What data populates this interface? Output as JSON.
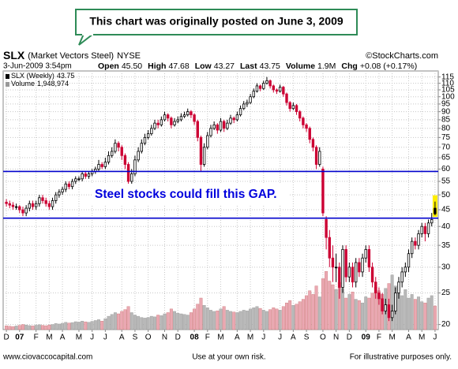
{
  "callout": "This chart was originally posted on June 3, 2009",
  "header": {
    "symbol": "SLX",
    "name": "(Market Vectors Steel)",
    "exchange": "NYSE",
    "source": "©StockCharts.com",
    "datetime": "3-Jun-2009 3:54pm",
    "quote": [
      {
        "label": "Open",
        "value": "45.50"
      },
      {
        "label": "High",
        "value": "47.68"
      },
      {
        "label": "Low",
        "value": "43.27"
      },
      {
        "label": "Last",
        "value": "43.75"
      },
      {
        "label": "Volume",
        "value": "1.9M"
      },
      {
        "label": "Chg",
        "value": "+0.08 (+0.17%)"
      }
    ]
  },
  "chart_data": {
    "type": "candlestick",
    "legend": [
      {
        "label": "SLX (Weekly)",
        "value": "43.75"
      },
      {
        "label": "Volume",
        "value": "1,948,974"
      }
    ],
    "annotation": "Steel stocks could fill this GAP.",
    "log_scale": true,
    "grid": true,
    "ylim": [
      19.3,
      120
    ],
    "yticks": [
      20,
      25,
      30,
      35,
      40,
      45,
      50,
      55,
      60,
      65,
      70,
      75,
      80,
      85,
      90,
      95,
      100,
      105,
      110,
      115
    ],
    "vlim": [
      0,
      6500000
    ],
    "xticks": [
      {
        "value": 0,
        "label": "D"
      },
      {
        "value": 4,
        "label": "07"
      },
      {
        "value": 9,
        "label": "F"
      },
      {
        "value": 13,
        "label": "M"
      },
      {
        "value": 17,
        "label": "A"
      },
      {
        "value": 22,
        "label": "M"
      },
      {
        "value": 26,
        "label": "J"
      },
      {
        "value": 30,
        "label": "J"
      },
      {
        "value": 35,
        "label": "A"
      },
      {
        "value": 39,
        "label": "S"
      },
      {
        "value": 43,
        "label": "O"
      },
      {
        "value": 48,
        "label": "N"
      },
      {
        "value": 52,
        "label": "D"
      },
      {
        "value": 57,
        "label": "08"
      },
      {
        "value": 61,
        "label": "F"
      },
      {
        "value": 65,
        "label": "M"
      },
      {
        "value": 70,
        "label": "A"
      },
      {
        "value": 74,
        "label": "M"
      },
      {
        "value": 78,
        "label": "J"
      },
      {
        "value": 83,
        "label": "J"
      },
      {
        "value": 87,
        "label": "A"
      },
      {
        "value": 91,
        "label": "S"
      },
      {
        "value": 96,
        "label": "O"
      },
      {
        "value": 100,
        "label": "N"
      },
      {
        "value": 104,
        "label": "D"
      },
      {
        "value": 109,
        "label": "09"
      },
      {
        "value": 113,
        "label": "F"
      },
      {
        "value": 117,
        "label": "M"
      },
      {
        "value": 122,
        "label": "A"
      },
      {
        "value": 126,
        "label": "M"
      },
      {
        "value": 130,
        "label": "J"
      }
    ],
    "up_color": "#000000",
    "down_color": "#cc0033",
    "volume_up_color": "#b8b8b8",
    "volume_down_color": "#eaa8b2",
    "highlight_color": "#ffee00",
    "reference_lines": [
      {
        "value": 59,
        "color": "#0000cc"
      },
      {
        "value": 42.4,
        "color": "#0000cc"
      }
    ],
    "ohlc": [
      [
        47.5,
        48.5,
        46,
        47
      ],
      [
        47,
        48,
        45.5,
        46.5
      ],
      [
        46.5,
        47.5,
        45,
        46
      ],
      [
        46,
        47,
        45,
        46
      ],
      [
        46,
        46.5,
        44,
        45
      ],
      [
        45,
        46,
        43,
        44
      ],
      [
        44,
        46.5,
        43,
        45.5
      ],
      [
        45.5,
        48,
        44.5,
        47
      ],
      [
        47,
        48,
        45,
        46
      ],
      [
        46,
        48,
        45,
        47
      ],
      [
        47,
        50,
        46,
        49
      ],
      [
        49,
        50,
        47,
        48
      ],
      [
        48,
        49,
        46,
        47
      ],
      [
        47,
        48,
        45,
        46
      ],
      [
        46,
        49,
        45,
        48
      ],
      [
        48,
        51,
        47,
        50
      ],
      [
        50,
        52,
        49,
        51
      ],
      [
        51,
        53,
        50,
        52
      ],
      [
        52,
        55,
        51,
        54
      ],
      [
        54,
        55,
        52,
        53
      ],
      [
        53,
        56,
        52,
        55
      ],
      [
        55,
        57,
        54,
        56
      ],
      [
        56,
        57,
        55,
        56
      ],
      [
        56,
        59,
        55,
        58
      ],
      [
        58,
        59,
        56,
        57
      ],
      [
        57,
        59,
        56,
        58
      ],
      [
        58,
        60,
        57,
        59
      ],
      [
        59,
        61,
        58,
        60
      ],
      [
        60,
        64,
        59,
        62
      ],
      [
        62,
        63,
        60,
        61
      ],
      [
        61,
        65,
        60,
        63
      ],
      [
        63,
        68,
        62,
        66
      ],
      [
        66,
        70,
        65,
        68
      ],
      [
        68,
        74,
        67,
        72
      ],
      [
        72,
        73,
        68,
        70
      ],
      [
        70,
        71,
        64,
        66
      ],
      [
        66,
        67,
        60,
        62
      ],
      [
        62,
        63,
        53,
        55
      ],
      [
        55,
        60,
        54,
        58
      ],
      [
        58,
        66,
        57,
        64
      ],
      [
        64,
        70,
        63,
        68
      ],
      [
        68,
        74,
        67,
        72
      ],
      [
        72,
        77,
        71,
        75
      ],
      [
        75,
        79,
        74,
        77
      ],
      [
        77,
        82,
        76,
        80
      ],
      [
        80,
        85,
        79,
        83
      ],
      [
        83,
        85,
        80,
        82
      ],
      [
        82,
        87,
        81,
        85
      ],
      [
        85,
        90,
        84,
        88
      ],
      [
        88,
        89,
        84,
        86
      ],
      [
        86,
        87,
        80,
        82
      ],
      [
        82,
        86,
        81,
        84
      ],
      [
        84,
        87,
        83,
        85
      ],
      [
        85,
        89,
        84,
        87
      ],
      [
        87,
        90,
        86,
        88
      ],
      [
        88,
        92,
        87,
        90
      ],
      [
        90,
        91,
        86,
        88
      ],
      [
        88,
        89,
        82,
        84
      ],
      [
        84,
        85,
        73,
        75
      ],
      [
        75,
        76,
        59,
        62
      ],
      [
        62,
        72,
        61,
        70
      ],
      [
        70,
        78,
        69,
        76
      ],
      [
        76,
        82,
        75,
        80
      ],
      [
        80,
        84,
        79,
        82
      ],
      [
        82,
        83,
        77,
        79
      ],
      [
        79,
        86,
        78,
        84
      ],
      [
        84,
        85,
        78,
        80
      ],
      [
        80,
        85,
        79,
        83
      ],
      [
        83,
        88,
        82,
        86
      ],
      [
        86,
        87,
        83,
        85
      ],
      [
        85,
        90,
        84,
        88
      ],
      [
        88,
        94,
        87,
        92
      ],
      [
        92,
        97,
        91,
        95
      ],
      [
        95,
        98,
        93,
        96
      ],
      [
        96,
        102,
        95,
        100
      ],
      [
        100,
        106,
        99,
        104
      ],
      [
        104,
        110,
        103,
        108
      ],
      [
        108,
        109,
        104,
        106
      ],
      [
        106,
        112,
        105,
        110
      ],
      [
        110,
        115,
        109,
        112
      ],
      [
        112,
        113,
        106,
        108
      ],
      [
        108,
        109,
        103,
        105
      ],
      [
        105,
        106,
        102,
        104
      ],
      [
        104,
        109,
        103,
        107
      ],
      [
        107,
        108,
        100,
        102
      ],
      [
        102,
        103,
        94,
        96
      ],
      [
        96,
        97,
        90,
        92
      ],
      [
        92,
        96,
        91,
        94
      ],
      [
        94,
        95,
        88,
        90
      ],
      [
        90,
        91,
        84,
        86
      ],
      [
        86,
        87,
        80,
        82
      ],
      [
        82,
        83,
        78,
        80
      ],
      [
        80,
        81,
        72,
        74
      ],
      [
        74,
        75,
        68,
        70
      ],
      [
        70,
        71,
        60,
        62
      ],
      [
        62,
        70,
        61,
        68
      ],
      [
        60,
        61,
        43,
        44
      ],
      [
        42,
        43,
        34,
        37
      ],
      [
        37,
        39,
        30,
        32
      ],
      [
        32,
        35,
        27,
        30
      ],
      [
        30,
        33,
        27,
        30
      ],
      [
        30,
        31,
        24,
        26
      ],
      [
        26,
        35,
        25,
        34
      ],
      [
        34,
        35,
        27,
        28
      ],
      [
        28,
        31,
        27,
        30
      ],
      [
        30,
        31,
        26,
        27
      ],
      [
        27,
        32,
        26,
        31
      ],
      [
        31,
        32,
        28,
        29
      ],
      [
        29,
        33,
        28,
        32
      ],
      [
        32,
        35,
        31,
        34
      ],
      [
        34,
        35,
        29,
        30
      ],
      [
        30,
        31,
        26,
        27
      ],
      [
        27,
        28,
        24,
        25
      ],
      [
        25,
        26,
        23,
        24
      ],
      [
        24,
        25,
        21.5,
        22
      ],
      [
        22,
        24,
        21.5,
        23
      ],
      [
        23,
        24,
        20.5,
        21
      ],
      [
        21,
        23,
        20.5,
        22
      ],
      [
        22,
        26,
        21.5,
        25
      ],
      [
        25,
        28,
        24,
        27
      ],
      [
        27,
        30,
        26,
        29
      ],
      [
        29,
        31,
        28,
        30
      ],
      [
        30,
        34,
        29,
        33
      ],
      [
        33,
        37,
        32,
        36
      ],
      [
        36,
        37,
        34,
        35
      ],
      [
        35,
        39,
        34,
        38
      ],
      [
        38,
        41,
        37,
        40
      ],
      [
        40,
        41,
        36,
        38
      ],
      [
        38,
        42,
        37,
        41
      ],
      [
        41,
        44,
        40,
        42
      ],
      [
        45.5,
        47.68,
        43.27,
        43.75
      ]
    ],
    "volume": [
      310000,
      280000,
      250000,
      300000,
      350000,
      420000,
      380000,
      330000,
      300000,
      360000,
      400000,
      350000,
      320000,
      380000,
      420000,
      500000,
      460000,
      520000,
      600000,
      540000,
      580000,
      650000,
      620000,
      700000,
      640000,
      600000,
      680000,
      750000,
      820000,
      700000,
      900000,
      1100000,
      1250000,
      1400000,
      1300000,
      1500000,
      1650000,
      1900000,
      1400000,
      1200000,
      1100000,
      1000000,
      950000,
      1000000,
      1100000,
      1050000,
      1200000,
      1150000,
      1300000,
      1400000,
      1700000,
      1500000,
      1350000,
      1300000,
      1250000,
      1200000,
      1400000,
      1700000,
      2100000,
      2600000,
      2000000,
      1800000,
      1600000,
      1500000,
      1550000,
      1700000,
      1900000,
      1600000,
      1500000,
      1450000,
      1400000,
      1500000,
      1600000,
      1550000,
      1700000,
      1800000,
      1900000,
      1750000,
      1600000,
      1500000,
      1650000,
      1800000,
      1700000,
      1600000,
      1900000,
      2200000,
      2400000,
      2000000,
      2100000,
      2300000,
      2500000,
      2800000,
      3200000,
      2900000,
      3600000,
      2700000,
      4200000,
      4800000,
      4000000,
      3700000,
      3300000,
      3900000,
      3400000,
      2600000,
      2900000,
      3100000,
      2500000,
      2400000,
      2200000,
      2700000,
      2600000,
      3000000,
      3500000,
      3200000,
      2900000,
      3400000,
      3800000,
      4500000,
      3600000,
      3000000,
      2800000,
      3300000,
      2600000,
      2900000,
      2500000,
      2700000,
      2300000,
      2200000,
      2600000,
      2800000,
      1948974
    ]
  },
  "footer": {
    "left": "www.ciovaccocapital.com",
    "center": "Use at your own risk.",
    "right": "For illustrative purposes only."
  }
}
